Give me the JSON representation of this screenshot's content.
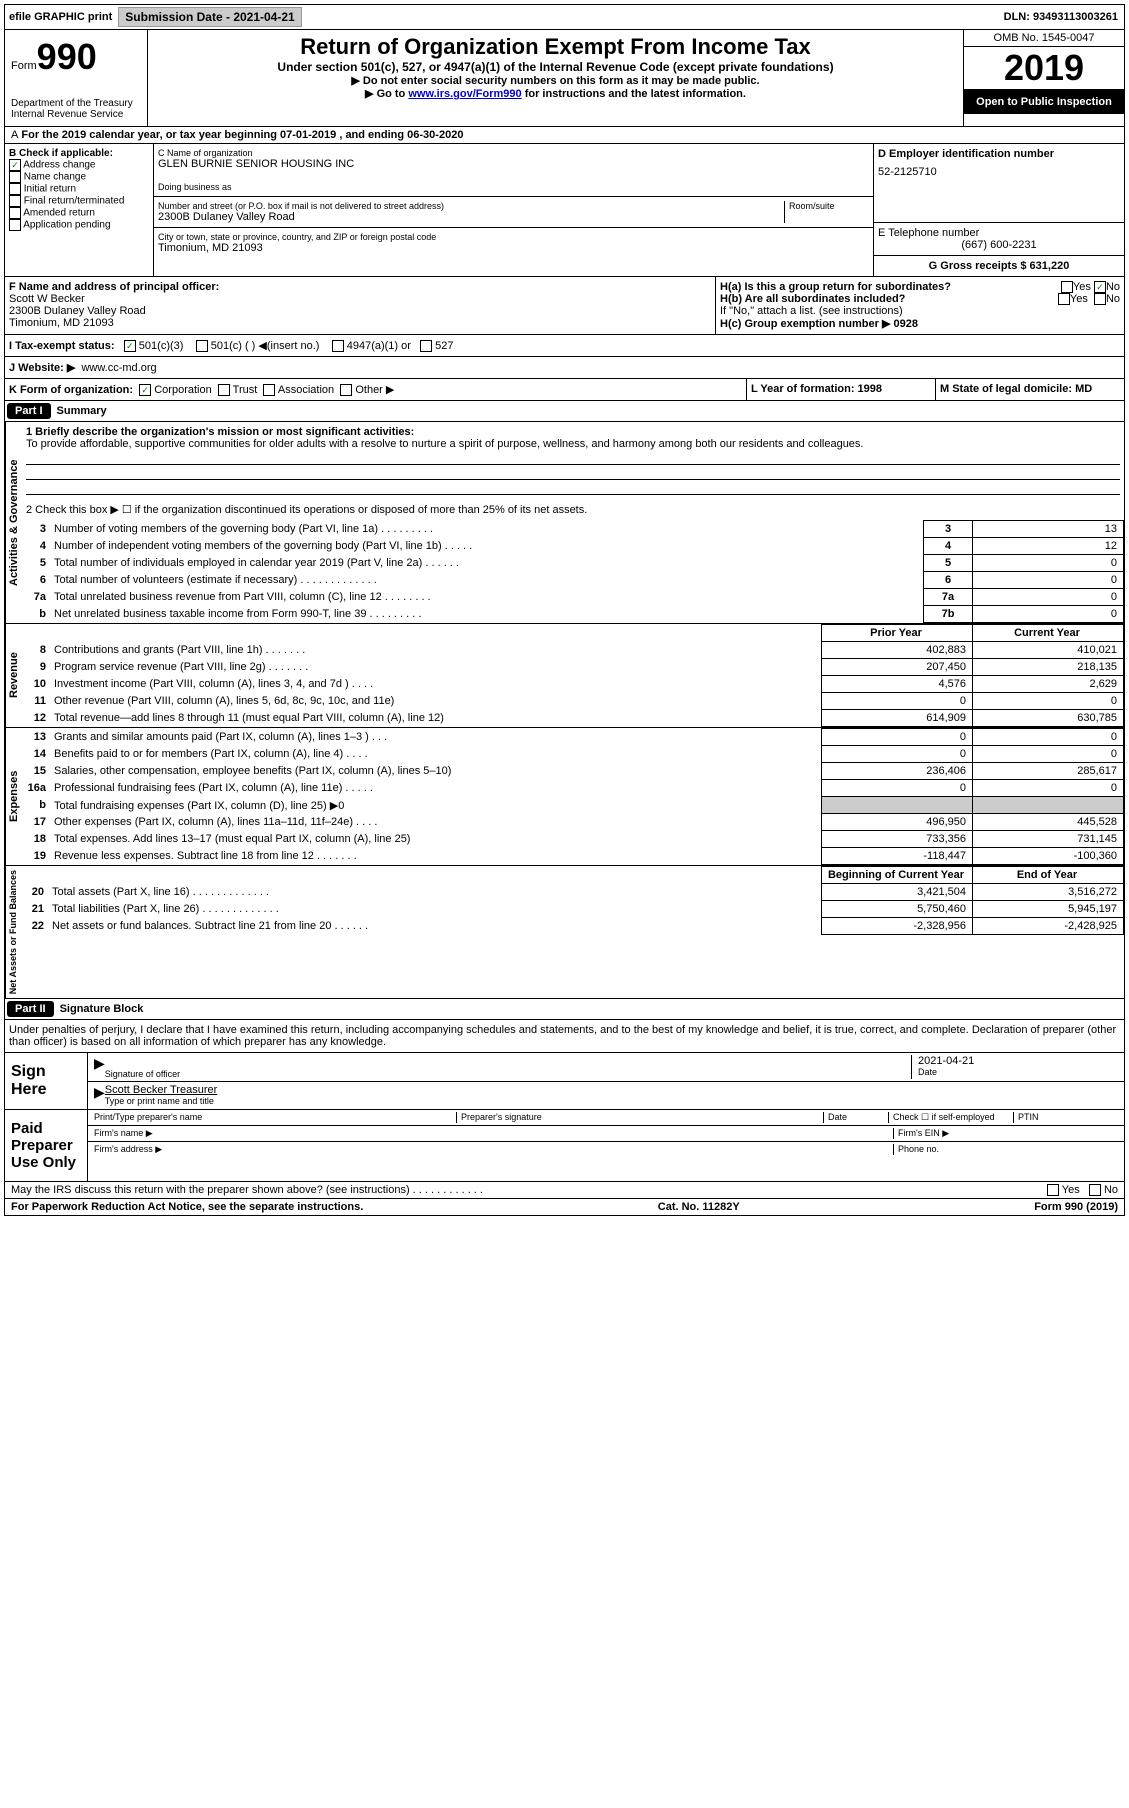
{
  "topbar": {
    "efile": "efile GRAPHIC print",
    "submission": "Submission Date - 2021-04-21",
    "dln": "DLN: 93493113003261"
  },
  "header": {
    "form_label": "Form",
    "form_number": "990",
    "title": "Return of Organization Exempt From Income Tax",
    "subtitle": "Under section 501(c), 527, or 4947(a)(1) of the Internal Revenue Code (except private foundations)",
    "note1": "▶ Do not enter social security numbers on this form as it may be made public.",
    "note2_pre": "▶ Go to ",
    "note2_link": "www.irs.gov/Form990",
    "note2_post": " for instructions and the latest information.",
    "dept": "Department of the Treasury\nInternal Revenue Service",
    "omb": "OMB No. 1545-0047",
    "year": "2019",
    "inspect": "Open to Public Inspection"
  },
  "line_a": "For the 2019 calendar year, or tax year beginning 07-01-2019   , and ending 06-30-2020",
  "section_b": {
    "label": "B Check if applicable:",
    "items": [
      "Address change",
      "Name change",
      "Initial return",
      "Final return/terminated",
      "Amended return",
      "Application pending"
    ],
    "checked_idx": 0
  },
  "section_c": {
    "label": "C Name of organization",
    "org_name": "GLEN BURNIE SENIOR HOUSING INC",
    "dba_label": "Doing business as",
    "addr_label": "Number and street (or P.O. box if mail is not delivered to street address)",
    "room_label": "Room/suite",
    "address": "2300B Dulaney Valley Road",
    "city_label": "City or town, state or province, country, and ZIP or foreign postal code",
    "city": "Timonium, MD  21093"
  },
  "section_d": {
    "label": "D Employer identification number",
    "ein": "52-2125710"
  },
  "section_e": {
    "label": "E Telephone number",
    "phone": "(667) 600-2231"
  },
  "section_g": {
    "label": "G Gross receipts $ 631,220"
  },
  "section_f": {
    "label": "F  Name and address of principal officer:",
    "name": "Scott W Becker",
    "addr1": "2300B Dulaney Valley Road",
    "addr2": "Timonium, MD  21093"
  },
  "section_h": {
    "a": "H(a)  Is this a group return for subordinates?",
    "a_yes": "Yes",
    "a_no": "No",
    "b": "H(b)  Are all subordinates included?",
    "b_note": "If \"No,\" attach a list. (see instructions)",
    "c": "H(c)  Group exemption number ▶   0928"
  },
  "section_i": {
    "label": "I   Tax-exempt status:",
    "opt1": "501(c)(3)",
    "opt2": "501(c) (  ) ◀(insert no.)",
    "opt3": "4947(a)(1) or",
    "opt4": "527"
  },
  "section_j": {
    "label": "J   Website: ▶",
    "value": "www.cc-md.org"
  },
  "section_k": {
    "label": "K Form of organization:",
    "opts": [
      "Corporation",
      "Trust",
      "Association",
      "Other ▶"
    ]
  },
  "section_l": {
    "label": "L Year of formation: 1998"
  },
  "section_m": {
    "label": "M State of legal domicile: MD"
  },
  "part1": {
    "header": "Part I",
    "title": "Summary",
    "vert_activities": "Activities & Governance",
    "vert_revenue": "Revenue",
    "vert_expenses": "Expenses",
    "vert_netassets": "Net Assets or Fund Balances",
    "line1_label": "1   Briefly describe the organization's mission or most significant activities:",
    "line1_text": "To provide affordable, supportive communities for older adults with a resolve to nurture a spirit of purpose, wellness, and harmony among both our residents and colleagues.",
    "line2": "2    Check this box ▶ ☐  if the organization discontinued its operations or disposed of more than 25% of its net assets.",
    "rows_gov": [
      {
        "n": "3",
        "label": "Number of voting members of the governing body (Part VI, line 1a)   .   .   .   .   .   .   .   .   .",
        "box": "3",
        "val": "13"
      },
      {
        "n": "4",
        "label": "Number of independent voting members of the governing body (Part VI, line 1b)   .   .   .   .   .",
        "box": "4",
        "val": "12"
      },
      {
        "n": "5",
        "label": "Total number of individuals employed in calendar year 2019 (Part V, line 2a)   .   .   .   .   .   .",
        "box": "5",
        "val": "0"
      },
      {
        "n": "6",
        "label": "Total number of volunteers (estimate if necessary)   .   .   .   .   .   .   .   .   .   .   .   .   .",
        "box": "6",
        "val": "0"
      },
      {
        "n": "7a",
        "label": "Total unrelated business revenue from Part VIII, column (C), line 12   .   .   .   .   .   .   .   .",
        "box": "7a",
        "val": "0"
      },
      {
        "n": "b",
        "label": "Net unrelated business taxable income from Form 990-T, line 39   .   .   .   .   .   .   .   .   .",
        "box": "7b",
        "val": "0"
      }
    ],
    "prior_year": "Prior Year",
    "current_year": "Current Year",
    "rows_rev": [
      {
        "n": "8",
        "label": "Contributions and grants (Part VIII, line 1h)   .   .   .   .   .   .   .",
        "py": "402,883",
        "cy": "410,021"
      },
      {
        "n": "9",
        "label": "Program service revenue (Part VIII, line 2g)   .   .   .   .   .   .   .",
        "py": "207,450",
        "cy": "218,135"
      },
      {
        "n": "10",
        "label": "Investment income (Part VIII, column (A), lines 3, 4, and 7d )   .   .   .   .",
        "py": "4,576",
        "cy": "2,629"
      },
      {
        "n": "11",
        "label": "Other revenue (Part VIII, column (A), lines 5, 6d, 8c, 9c, 10c, and 11e)",
        "py": "0",
        "cy": "0"
      },
      {
        "n": "12",
        "label": "Total revenue—add lines 8 through 11 (must equal Part VIII, column (A), line 12)",
        "py": "614,909",
        "cy": "630,785"
      }
    ],
    "rows_exp": [
      {
        "n": "13",
        "label": "Grants and similar amounts paid (Part IX, column (A), lines 1–3 )   .   .   .",
        "py": "0",
        "cy": "0"
      },
      {
        "n": "14",
        "label": "Benefits paid to or for members (Part IX, column (A), line 4)   .   .   .   .",
        "py": "0",
        "cy": "0"
      },
      {
        "n": "15",
        "label": "Salaries, other compensation, employee benefits (Part IX, column (A), lines 5–10)",
        "py": "236,406",
        "cy": "285,617"
      },
      {
        "n": "16a",
        "label": "Professional fundraising fees (Part IX, column (A), line 11e)   .   .   .   .   .",
        "py": "0",
        "cy": "0"
      },
      {
        "n": "b",
        "label": "Total fundraising expenses (Part IX, column (D), line 25) ▶0",
        "py": "",
        "cy": "",
        "grey": true
      },
      {
        "n": "17",
        "label": "Other expenses (Part IX, column (A), lines 11a–11d, 11f–24e)   .   .   .   .",
        "py": "496,950",
        "cy": "445,528"
      },
      {
        "n": "18",
        "label": "Total expenses. Add lines 13–17 (must equal Part IX, column (A), line 25)",
        "py": "733,356",
        "cy": "731,145"
      },
      {
        "n": "19",
        "label": "Revenue less expenses. Subtract line 18 from line 12   .   .   .   .   .   .   .",
        "py": "-118,447",
        "cy": "-100,360"
      }
    ],
    "begin_year": "Beginning of Current Year",
    "end_year": "End of Year",
    "rows_net": [
      {
        "n": "20",
        "label": "Total assets (Part X, line 16)   .   .   .   .   .   .   .   .   .   .   .   .   .",
        "py": "3,421,504",
        "cy": "3,516,272"
      },
      {
        "n": "21",
        "label": "Total liabilities (Part X, line 26)   .   .   .   .   .   .   .   .   .   .   .   .   .",
        "py": "5,750,460",
        "cy": "5,945,197"
      },
      {
        "n": "22",
        "label": "Net assets or fund balances. Subtract line 21 from line 20   .   .   .   .   .   .",
        "py": "-2,328,956",
        "cy": "-2,428,925"
      }
    ]
  },
  "part2": {
    "header": "Part II",
    "title": "Signature Block",
    "decl": "Under penalties of perjury, I declare that I have examined this return, including accompanying schedules and statements, and to the best of my knowledge and belief, it is true, correct, and complete. Declaration of preparer (other than officer) is based on all information of which preparer has any knowledge.",
    "sign_here": "Sign Here",
    "sig_officer": "Signature of officer",
    "sig_date": "Date",
    "date_val": "2021-04-21",
    "officer_name": "Scott Becker  Treasurer",
    "type_name": "Type or print name and title",
    "paid": "Paid Preparer Use Only",
    "prep_name": "Print/Type preparer's name",
    "prep_sig": "Preparer's signature",
    "prep_date": "Date",
    "check_self": "Check ☐  if self-employed",
    "ptin": "PTIN",
    "firm_name": "Firm's name   ▶",
    "firm_ein": "Firm's EIN ▶",
    "firm_addr": "Firm's address ▶",
    "phone": "Phone no.",
    "discuss": "May the IRS discuss this return with the preparer shown above? (see instructions)   .   .   .   .   .   .   .   .   .   .   .   .",
    "discuss_yes": "Yes",
    "discuss_no": "No"
  },
  "footer": {
    "paperwork": "For Paperwork Reduction Act Notice, see the separate instructions.",
    "cat": "Cat. No. 11282Y",
    "form": "Form 990 (2019)"
  }
}
